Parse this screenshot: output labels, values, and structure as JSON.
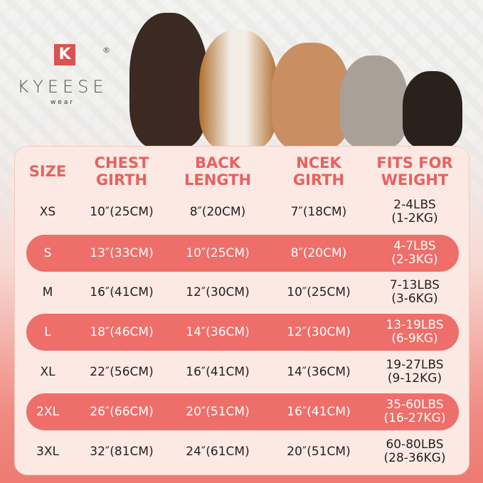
{
  "brand": {
    "logo_letter": "K",
    "name": "KYEESE",
    "sub": "wear",
    "registered": "®"
  },
  "colors": {
    "accent": "#e8615e",
    "stripe": "#ee6e69",
    "panel": "#fce9e4"
  },
  "table": {
    "headers": [
      [
        "SIZE"
      ],
      [
        "CHEST",
        "GIRTH"
      ],
      [
        "BACK",
        "LENGTH"
      ],
      [
        "NCEK",
        "GIRTH"
      ],
      [
        "FITS FOR",
        "WEIGHT"
      ]
    ],
    "rows": [
      {
        "size": "XS",
        "chest": "10″(25CM)",
        "back": "8″(20CM)",
        "neck": "7″(18CM)",
        "weight": [
          "2-4LBS",
          "(1-2KG)"
        ]
      },
      {
        "size": "S",
        "chest": "13″(33CM)",
        "back": "10″(25CM)",
        "neck": "8″(20CM)",
        "weight": [
          "4-7LBS",
          "(2-3KG)"
        ]
      },
      {
        "size": "M",
        "chest": "16″(41CM)",
        "back": "12″(30CM)",
        "neck": "10″(25CM)",
        "weight": [
          "7-13LBS",
          "(3-6KG)"
        ]
      },
      {
        "size": "L",
        "chest": "18″(46CM)",
        "back": "14″(36CM)",
        "neck": "12″(30CM)",
        "weight": [
          "13-19LBS",
          "(6-9KG)"
        ]
      },
      {
        "size": "XL",
        "chest": "22″(56CM)",
        "back": "16″(41CM)",
        "neck": "14″(36CM)",
        "weight": [
          "19-27LBS",
          "(9-12KG)"
        ]
      },
      {
        "size": "2XL",
        "chest": "26″(66CM)",
        "back": "20″(51CM)",
        "neck": "16″(41CM)",
        "weight": [
          "35-60LBS",
          "(16-27KG)"
        ]
      },
      {
        "size": "3XL",
        "chest": "32″(81CM)",
        "back": "24″(61CM)",
        "neck": "20″(51CM)",
        "weight": [
          "60-80LBS",
          "(28-36KG)"
        ]
      }
    ]
  }
}
